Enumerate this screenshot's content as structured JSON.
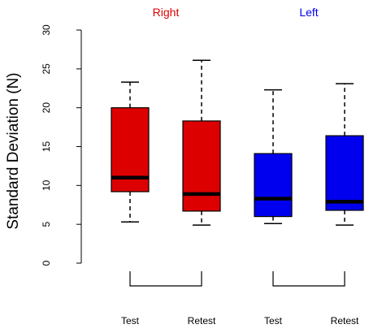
{
  "chart_data": {
    "type": "box",
    "ylabel": "Standard Deviation (N)",
    "ylim": [
      0,
      30
    ],
    "yticks": [
      0,
      5,
      10,
      15,
      20,
      25,
      30
    ],
    "grid": false,
    "groups": [
      {
        "name": "Right",
        "color": "#dd0000",
        "boxes": [
          {
            "label": "Test",
            "min": 5.3,
            "q1": 9.2,
            "median": 11.0,
            "q3": 20.0,
            "max": 23.3
          },
          {
            "label": "Retest",
            "min": 4.9,
            "q1": 6.7,
            "median": 8.9,
            "q3": 18.3,
            "max": 26.1
          }
        ]
      },
      {
        "name": "Left",
        "color": "#0000ee",
        "boxes": [
          {
            "label": "Test",
            "min": 5.1,
            "q1": 6.0,
            "median": 8.3,
            "q3": 14.1,
            "max": 22.3
          },
          {
            "label": "Retest",
            "min": 4.9,
            "q1": 6.8,
            "median": 7.9,
            "q3": 16.4,
            "max": 23.1
          }
        ]
      }
    ]
  }
}
